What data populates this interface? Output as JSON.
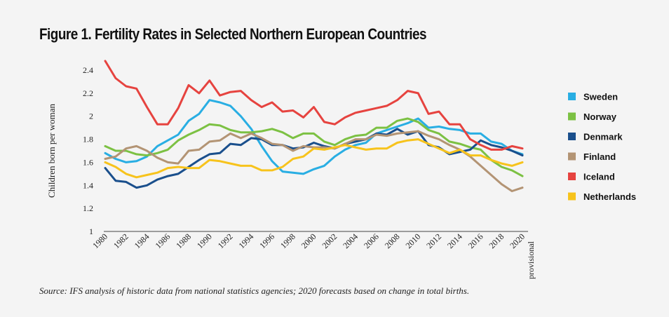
{
  "figure": {
    "title": "Figure 1. Fertility Rates in Selected Northern European Countries",
    "source": "Source: IFS analysis of historic data from national statistics agencies; 2020 forecasts based on change in total births."
  },
  "chart_data": {
    "type": "line",
    "title": "Figure 1. Fertility Rates in Selected Northern European Countries",
    "xlabel": "",
    "ylabel": "Children born per woman",
    "ylim": [
      1,
      2.4
    ],
    "yticks": [
      "1",
      "1.2",
      "1.4",
      "1.6",
      "1.8",
      "2",
      "2.2",
      "2.4"
    ],
    "ytick_values": [
      1,
      1.2,
      1.4,
      1.6,
      1.8,
      2.0,
      2.2,
      2.4
    ],
    "x": [
      1980,
      1981,
      1982,
      1983,
      1984,
      1985,
      1986,
      1987,
      1988,
      1989,
      1990,
      1991,
      1992,
      1993,
      1994,
      1995,
      1996,
      1997,
      1998,
      1999,
      2000,
      2001,
      2002,
      2003,
      2004,
      2005,
      2006,
      2007,
      2008,
      2009,
      2010,
      2011,
      2012,
      2013,
      2014,
      2015,
      2016,
      2017,
      2018,
      2019,
      2020
    ],
    "xticks": [
      "1980",
      "1982",
      "1984",
      "1986",
      "1988",
      "1990",
      "1992",
      "1994",
      "1996",
      "1998",
      "2000",
      "2002",
      "2004",
      "2006",
      "2008",
      "2010",
      "2012",
      "2014",
      "2016",
      "2018",
      "2020"
    ],
    "xtick_values": [
      1980,
      1982,
      1984,
      1986,
      1988,
      1990,
      1992,
      1994,
      1996,
      1998,
      2000,
      2002,
      2004,
      2006,
      2008,
      2010,
      2012,
      2014,
      2016,
      2018,
      2020
    ],
    "xtick_sub": "provisional",
    "grid": false,
    "legend_position": "right",
    "series": [
      {
        "name": "Sweden",
        "color": "#29aee3",
        "values": [
          1.68,
          1.63,
          1.6,
          1.61,
          1.65,
          1.74,
          1.79,
          1.84,
          1.96,
          2.02,
          2.14,
          2.12,
          2.09,
          2.0,
          1.89,
          1.74,
          1.61,
          1.52,
          1.51,
          1.5,
          1.54,
          1.57,
          1.65,
          1.71,
          1.75,
          1.77,
          1.85,
          1.88,
          1.91,
          1.94,
          1.98,
          1.9,
          1.91,
          1.89,
          1.88,
          1.85,
          1.85,
          1.78,
          1.76,
          1.7,
          1.67
        ]
      },
      {
        "name": "Norway",
        "color": "#7cc143",
        "values": [
          1.74,
          1.7,
          1.7,
          1.67,
          1.66,
          1.68,
          1.71,
          1.79,
          1.84,
          1.88,
          1.93,
          1.92,
          1.88,
          1.86,
          1.86,
          1.87,
          1.89,
          1.86,
          1.81,
          1.85,
          1.85,
          1.78,
          1.75,
          1.8,
          1.83,
          1.84,
          1.9,
          1.9,
          1.96,
          1.98,
          1.95,
          1.88,
          1.85,
          1.78,
          1.76,
          1.73,
          1.71,
          1.62,
          1.56,
          1.53,
          1.48
        ]
      },
      {
        "name": "Denmark",
        "color": "#1a4f8c",
        "values": [
          1.55,
          1.44,
          1.43,
          1.38,
          1.4,
          1.45,
          1.48,
          1.5,
          1.56,
          1.62,
          1.67,
          1.68,
          1.76,
          1.75,
          1.81,
          1.8,
          1.75,
          1.75,
          1.72,
          1.73,
          1.77,
          1.74,
          1.72,
          1.76,
          1.78,
          1.8,
          1.85,
          1.84,
          1.89,
          1.84,
          1.87,
          1.75,
          1.73,
          1.67,
          1.69,
          1.71,
          1.79,
          1.75,
          1.73,
          1.7,
          1.66
        ]
      },
      {
        "name": "Finland",
        "color": "#b39474",
        "values": [
          1.63,
          1.65,
          1.72,
          1.74,
          1.7,
          1.64,
          1.6,
          1.59,
          1.7,
          1.71,
          1.78,
          1.79,
          1.85,
          1.81,
          1.85,
          1.81,
          1.76,
          1.75,
          1.7,
          1.74,
          1.73,
          1.73,
          1.72,
          1.76,
          1.8,
          1.8,
          1.84,
          1.83,
          1.85,
          1.86,
          1.87,
          1.83,
          1.8,
          1.75,
          1.71,
          1.65,
          1.57,
          1.49,
          1.41,
          1.35,
          1.38
        ]
      },
      {
        "name": "Iceland",
        "color": "#e6433f",
        "values": [
          2.48,
          2.33,
          2.26,
          2.24,
          2.08,
          1.93,
          1.93,
          2.07,
          2.27,
          2.2,
          2.31,
          2.18,
          2.21,
          2.22,
          2.14,
          2.08,
          2.12,
          2.04,
          2.05,
          1.99,
          2.08,
          1.95,
          1.93,
          1.99,
          2.03,
          2.05,
          2.07,
          2.09,
          2.14,
          2.22,
          2.2,
          2.02,
          2.04,
          1.93,
          1.93,
          1.8,
          1.75,
          1.71,
          1.71,
          1.74,
          1.72
        ]
      },
      {
        "name": "Netherlands",
        "color": "#f7c31c",
        "values": [
          1.6,
          1.56,
          1.5,
          1.47,
          1.49,
          1.51,
          1.55,
          1.56,
          1.55,
          1.55,
          1.62,
          1.61,
          1.59,
          1.57,
          1.57,
          1.53,
          1.53,
          1.56,
          1.63,
          1.65,
          1.72,
          1.71,
          1.73,
          1.75,
          1.73,
          1.71,
          1.72,
          1.72,
          1.77,
          1.79,
          1.8,
          1.76,
          1.72,
          1.68,
          1.71,
          1.66,
          1.66,
          1.62,
          1.59,
          1.57,
          1.6
        ]
      }
    ]
  }
}
